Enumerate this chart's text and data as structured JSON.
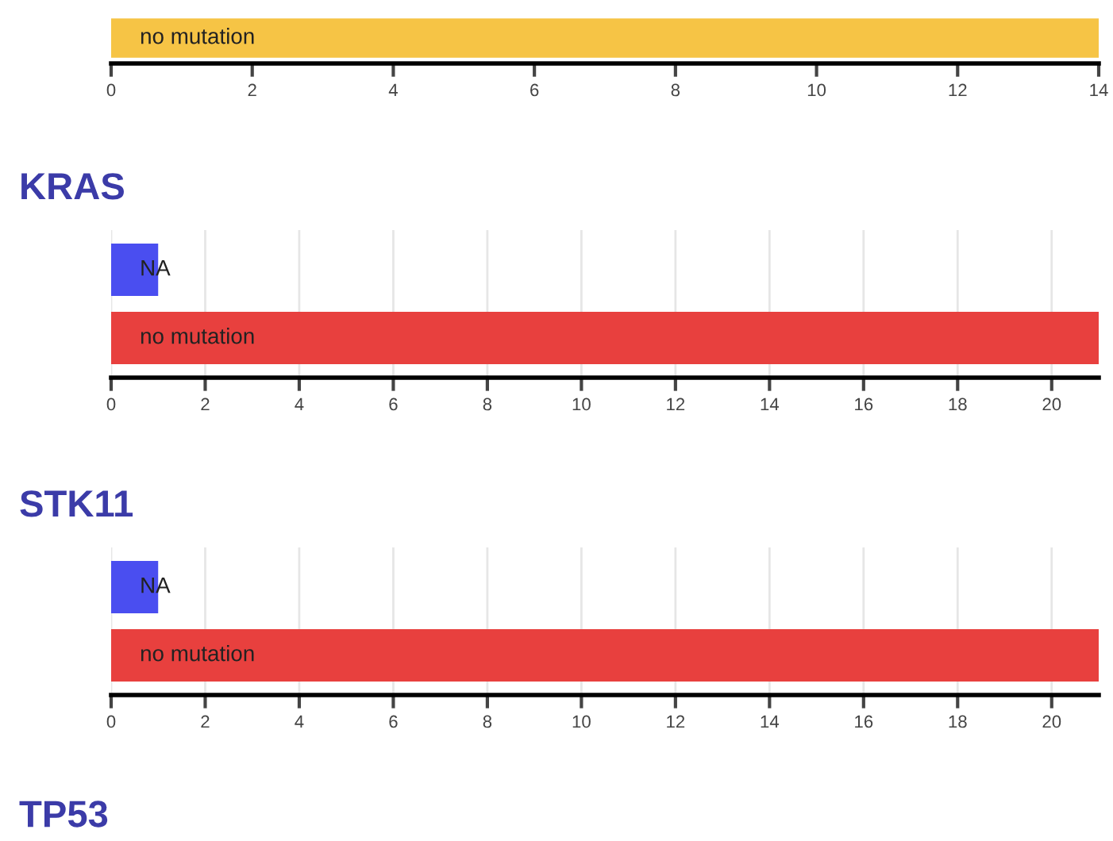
{
  "chart_data": [
    {
      "type": "bar",
      "orientation": "horizontal",
      "categories": [
        "no mutation"
      ],
      "colors": [
        "#f6c445"
      ],
      "values": [
        14
      ],
      "xlim": [
        0,
        14
      ],
      "xticks": [
        0,
        2,
        4,
        6,
        8,
        10,
        12,
        14
      ]
    },
    {
      "type": "bar",
      "orientation": "horizontal",
      "title": "KRAS",
      "categories": [
        "NA",
        "no mutation"
      ],
      "colors": [
        "#4a4ef0",
        "#e8403e"
      ],
      "values": [
        1,
        21
      ],
      "xlim": [
        0,
        21
      ],
      "xticks": [
        0,
        2,
        4,
        6,
        8,
        10,
        12,
        14,
        16,
        18,
        20
      ],
      "grid": "x"
    },
    {
      "type": "bar",
      "orientation": "horizontal",
      "title": "STK11",
      "categories": [
        "NA",
        "no mutation"
      ],
      "colors": [
        "#4a4ef0",
        "#e8403e"
      ],
      "values": [
        1,
        21
      ],
      "xlim": [
        0,
        21
      ],
      "xticks": [
        0,
        2,
        4,
        6,
        8,
        10,
        12,
        14,
        16,
        18,
        20
      ],
      "grid": "x"
    },
    {
      "type": "other",
      "title": "TP53"
    }
  ]
}
